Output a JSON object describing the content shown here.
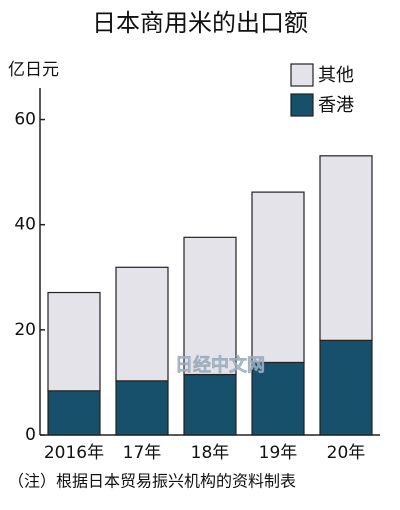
{
  "chart_data": {
    "type": "stacked-bar",
    "title": "日本商用米的出口额",
    "y_label": "亿日元",
    "categories": [
      "2016年",
      "17年",
      "18年",
      "19年",
      "20年"
    ],
    "series": [
      {
        "name": "香港",
        "color": "#17506a",
        "values": [
          8.4,
          10.3,
          11.5,
          13.8,
          18
        ]
      },
      {
        "name": "其他",
        "color": "#e4e3e9",
        "values": [
          18.7,
          21.6,
          26.1,
          32.4,
          35.1
        ]
      }
    ],
    "ylim": [
      0,
      66
    ],
    "yticks": [
      0,
      20,
      40,
      60
    ],
    "legend": "top-right",
    "legend_order": [
      1,
      0
    ],
    "note": "（注）根据日本贸易振兴机构的资料制表",
    "watermark": "日经中文网"
  }
}
